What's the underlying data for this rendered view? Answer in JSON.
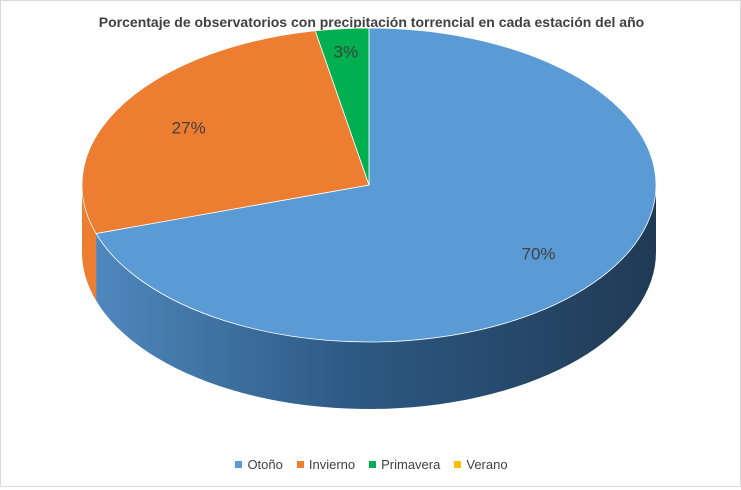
{
  "chart_data": {
    "type": "pie",
    "title": "Porcentaje de observatorios con precipitación torrencial en cada estación del año",
    "categories": [
      "Otoño",
      "Invierno",
      "Primavera",
      "Verano"
    ],
    "values": [
      70,
      27,
      3,
      0
    ],
    "data_labels": [
      "70%",
      "27%",
      "3%",
      ""
    ],
    "colors": [
      "#5b9bd5",
      "#ed7d31",
      "#00b050",
      "#ffc000"
    ],
    "legend_position": "bottom",
    "style": "3d"
  }
}
